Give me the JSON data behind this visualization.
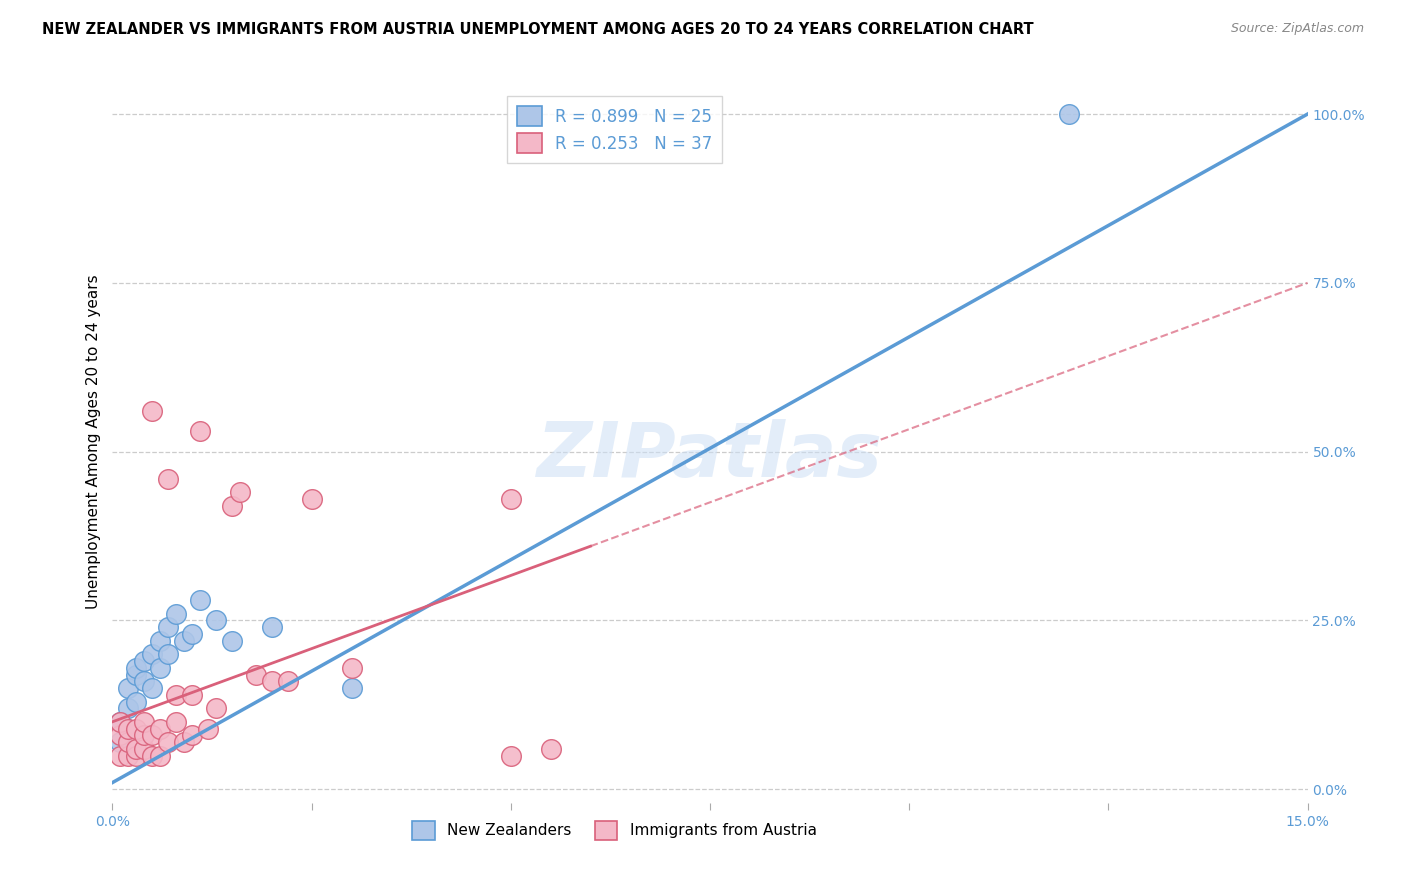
{
  "title": "NEW ZEALANDER VS IMMIGRANTS FROM AUSTRIA UNEMPLOYMENT AMONG AGES 20 TO 24 YEARS CORRELATION CHART",
  "source": "Source: ZipAtlas.com",
  "ylabel": "Unemployment Among Ages 20 to 24 years",
  "xlim": [
    0.0,
    0.15
  ],
  "ylim": [
    -0.02,
    1.05
  ],
  "xticks": [
    0.0,
    0.025,
    0.05,
    0.075,
    0.1,
    0.125,
    0.15
  ],
  "xtick_labels": [
    "0.0%",
    "",
    "",
    "",
    "",
    "",
    "15.0%"
  ],
  "ytick_labels_right": [
    "0.0%",
    "25.0%",
    "50.0%",
    "75.0%",
    "100.0%"
  ],
  "ytick_positions_right": [
    0.0,
    0.25,
    0.5,
    0.75,
    1.0
  ],
  "watermark": "ZIPatlas",
  "nz_color": "#aec6e8",
  "nz_edge_color": "#5b9bd5",
  "austria_color": "#f4b8c8",
  "austria_edge_color": "#d9607a",
  "nz_R": "0.899",
  "nz_N": "25",
  "austria_R": "0.253",
  "austria_N": "37",
  "nz_scatter_x": [
    0.001,
    0.001,
    0.002,
    0.002,
    0.002,
    0.003,
    0.003,
    0.003,
    0.004,
    0.004,
    0.005,
    0.005,
    0.006,
    0.006,
    0.007,
    0.007,
    0.008,
    0.009,
    0.01,
    0.011,
    0.013,
    0.015,
    0.02,
    0.03,
    0.12
  ],
  "nz_scatter_y": [
    0.07,
    0.1,
    0.09,
    0.12,
    0.15,
    0.13,
    0.17,
    0.18,
    0.16,
    0.19,
    0.15,
    0.2,
    0.18,
    0.22,
    0.2,
    0.24,
    0.26,
    0.22,
    0.23,
    0.28,
    0.25,
    0.22,
    0.24,
    0.15,
    1.0
  ],
  "austria_scatter_x": [
    0.001,
    0.001,
    0.001,
    0.002,
    0.002,
    0.002,
    0.003,
    0.003,
    0.003,
    0.004,
    0.004,
    0.004,
    0.005,
    0.005,
    0.005,
    0.006,
    0.006,
    0.007,
    0.007,
    0.008,
    0.008,
    0.009,
    0.01,
    0.01,
    0.011,
    0.012,
    0.013,
    0.015,
    0.016,
    0.018,
    0.02,
    0.022,
    0.025,
    0.03,
    0.05,
    0.05,
    0.055
  ],
  "austria_scatter_y": [
    0.05,
    0.08,
    0.1,
    0.05,
    0.07,
    0.09,
    0.05,
    0.06,
    0.09,
    0.06,
    0.08,
    0.1,
    0.05,
    0.08,
    0.56,
    0.05,
    0.09,
    0.07,
    0.46,
    0.1,
    0.14,
    0.07,
    0.08,
    0.14,
    0.53,
    0.09,
    0.12,
    0.42,
    0.44,
    0.17,
    0.16,
    0.16,
    0.43,
    0.18,
    0.43,
    0.05,
    0.06
  ],
  "nz_trend_x": [
    0.0,
    0.15
  ],
  "nz_trend_y": [
    0.01,
    1.0
  ],
  "austria_trend_x": [
    0.0,
    0.06
  ],
  "austria_trend_y": [
    0.1,
    0.36
  ],
  "grid_color": "#cccccc",
  "background_color": "#ffffff",
  "title_fontsize": 10.5,
  "axis_label_fontsize": 11,
  "tick_fontsize": 10,
  "legend_fontsize": 12
}
